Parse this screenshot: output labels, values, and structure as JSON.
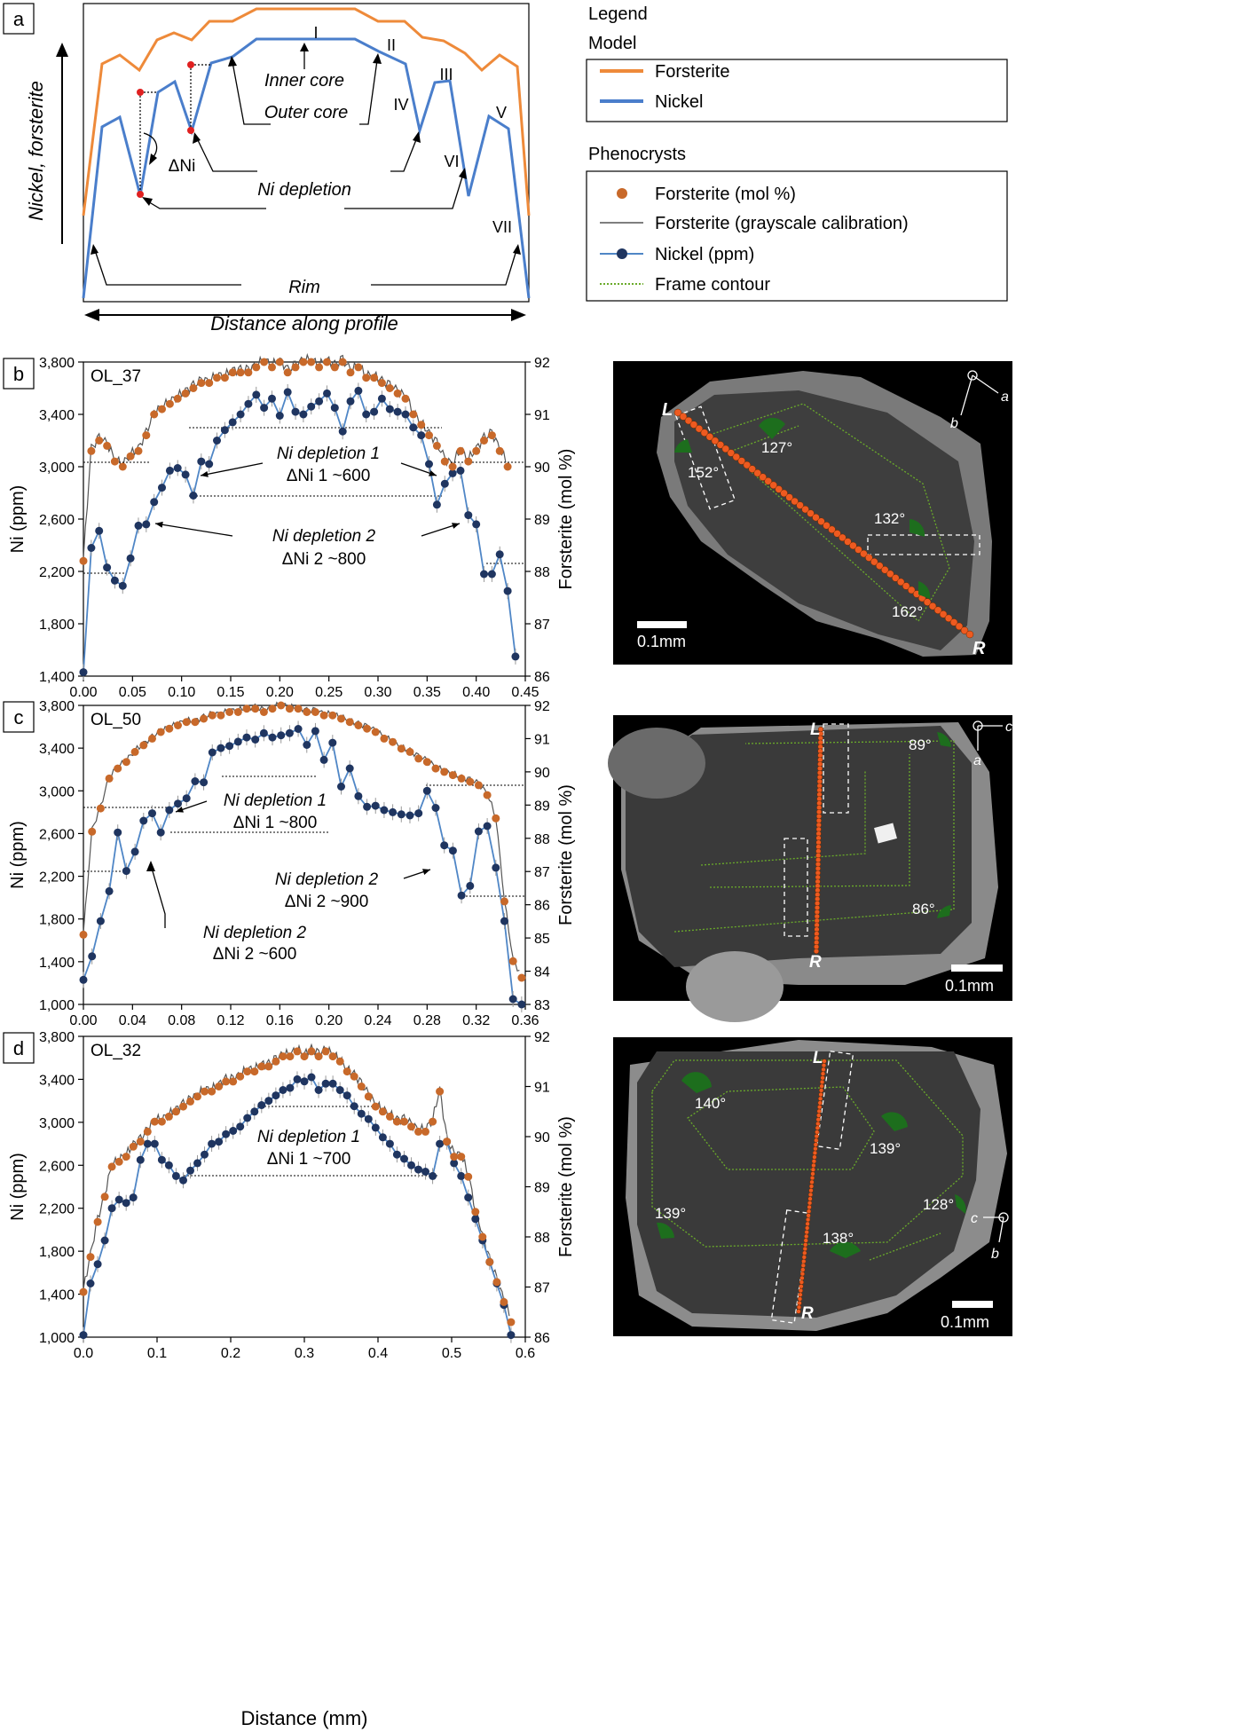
{
  "panel_letters": [
    "a",
    "b",
    "c",
    "d"
  ],
  "panel_a": {
    "y_axis_label": "Nickel, forsterite",
    "x_axis_label": "Distance along profile",
    "labels": {
      "inner_core": "Inner core",
      "outer_core": "Outer core",
      "ni_depletion": "Ni depletion",
      "delta_ni": "ΔNi",
      "rim": "Rim"
    },
    "roman": [
      "I",
      "II",
      "III",
      "IV",
      "V",
      "VI",
      "VII"
    ]
  },
  "legend": {
    "heading": "Legend",
    "model_heading": "Model",
    "model": [
      {
        "label": "Forsterite",
        "color": "#ee8a3a",
        "style": "line"
      },
      {
        "label": "Nickel",
        "color": "#4a7ecb",
        "style": "line"
      }
    ],
    "phenocrysts_heading": "Phenocrysts",
    "phenocrysts": [
      {
        "label": "Forsterite (mol %)",
        "color": "#c8692a",
        "style": "dot"
      },
      {
        "label": "Forsterite (grayscale calibration)",
        "color": "#555555",
        "style": "thin"
      },
      {
        "label": "Nickel (ppm)",
        "color": "#1f3b63",
        "style": "dotline"
      },
      {
        "label": "Frame contour",
        "color": "#6aab2a",
        "style": "dotted"
      }
    ]
  },
  "colors": {
    "forsterite_dot": "#c8692a",
    "nickel_line": "#4f86c6",
    "nickel_dot": "#1f3560",
    "gray_line": "#555555",
    "model_fo": "#ee8a3a",
    "model_ni": "#4a7ecb",
    "frame_contour": "#6aab2a",
    "profile_dots": "#ee5a20"
  },
  "common": {
    "y_left_label": "Ni (ppm)",
    "y_right_label": "Forsterite (mol %)",
    "x_label": "Distance (mm)",
    "scale_bar": "0.1mm",
    "L": "L",
    "R": "R"
  },
  "chart_data": [
    {
      "panel": "b",
      "type": "line",
      "title": "OL_37",
      "xlabel": "Distance (mm)",
      "ylabel": "Ni (ppm)",
      "y2label": "Forsterite (mol %)",
      "xlim": [
        0,
        0.45
      ],
      "ylim": [
        1400,
        3800
      ],
      "y2lim": [
        86,
        92
      ],
      "xticks": [
        "0.00",
        "0.05",
        "0.10",
        "0.15",
        "0.20",
        "0.25",
        "0.30",
        "0.35",
        "0.40",
        "0.45"
      ],
      "yticks": [
        "1,400",
        "1,800",
        "2,200",
        "2,600",
        "3,000",
        "3,400",
        "3,800"
      ],
      "y2ticks": [
        "86",
        "87",
        "88",
        "89",
        "90",
        "91",
        "92"
      ],
      "series": [
        {
          "name": "Nickel (ppm)",
          "x": [
            0.0,
            0.008,
            0.016,
            0.024,
            0.032,
            0.04,
            0.048,
            0.056,
            0.064,
            0.072,
            0.08,
            0.088,
            0.096,
            0.104,
            0.112,
            0.12,
            0.128,
            0.136,
            0.144,
            0.152,
            0.16,
            0.168,
            0.176,
            0.184,
            0.192,
            0.2,
            0.208,
            0.216,
            0.224,
            0.232,
            0.24,
            0.248,
            0.256,
            0.264,
            0.272,
            0.28,
            0.288,
            0.296,
            0.304,
            0.312,
            0.32,
            0.328,
            0.336,
            0.344,
            0.352,
            0.36,
            0.368,
            0.376,
            0.384,
            0.392,
            0.4,
            0.408,
            0.416,
            0.424,
            0.432,
            0.44
          ],
          "y": [
            1430,
            2380,
            2510,
            2230,
            2130,
            2090,
            2300,
            2550,
            2560,
            2730,
            2840,
            2970,
            2990,
            2940,
            2780,
            3040,
            3020,
            3200,
            3280,
            3340,
            3400,
            3480,
            3550,
            3450,
            3520,
            3390,
            3570,
            3420,
            3400,
            3460,
            3500,
            3560,
            3450,
            3270,
            3500,
            3580,
            3400,
            3420,
            3520,
            3440,
            3420,
            3400,
            3300,
            3240,
            3020,
            2710,
            2870,
            2950,
            2970,
            2630,
            2560,
            2180,
            2180,
            2330,
            2050,
            1550
          ]
        },
        {
          "name": "Forsterite (mol %)",
          "x": [
            0.0,
            0.008,
            0.016,
            0.024,
            0.032,
            0.04,
            0.048,
            0.056,
            0.064,
            0.072,
            0.08,
            0.088,
            0.096,
            0.104,
            0.112,
            0.12,
            0.128,
            0.136,
            0.144,
            0.152,
            0.16,
            0.168,
            0.176,
            0.184,
            0.192,
            0.2,
            0.208,
            0.216,
            0.224,
            0.232,
            0.24,
            0.248,
            0.256,
            0.264,
            0.272,
            0.28,
            0.288,
            0.296,
            0.304,
            0.312,
            0.32,
            0.328,
            0.336,
            0.344,
            0.352,
            0.36,
            0.368,
            0.376,
            0.384,
            0.392,
            0.4,
            0.408,
            0.416,
            0.424,
            0.432
          ],
          "y": [
            88.2,
            90.3,
            90.5,
            90.4,
            90.1,
            90.0,
            90.2,
            90.3,
            90.6,
            91.0,
            91.1,
            91.2,
            91.3,
            91.4,
            91.5,
            91.6,
            91.6,
            91.7,
            91.7,
            91.8,
            91.8,
            91.8,
            91.9,
            92.0,
            91.9,
            92.0,
            91.8,
            91.9,
            92.0,
            92.0,
            91.9,
            92.0,
            91.9,
            92.0,
            91.8,
            91.9,
            91.7,
            91.7,
            91.6,
            91.5,
            91.4,
            91.3,
            91.0,
            90.8,
            90.6,
            90.4,
            90.1,
            90.0,
            90.3,
            90.1,
            90.3,
            90.5,
            90.6,
            90.3,
            90.0
          ]
        }
      ],
      "annotations": [
        {
          "text": "Ni depletion 1",
          "value": "ΔNi 1 ~600"
        },
        {
          "text": "Ni depletion 2",
          "value": "ΔNi 2 ~800"
        }
      ],
      "grain_angles": [
        "127°",
        "152°",
        "132°",
        "162°"
      ],
      "axis_labels": [
        "a",
        "b"
      ]
    },
    {
      "panel": "c",
      "type": "line",
      "title": "OL_50",
      "xlabel": "Distance (mm)",
      "ylabel": "Ni (ppm)",
      "y2label": "Forsterite (mol %)",
      "xlim": [
        0,
        0.36
      ],
      "ylim": [
        1000,
        3800
      ],
      "y2lim": [
        83,
        92
      ],
      "xticks": [
        "0.00",
        "0.04",
        "0.08",
        "0.12",
        "0.16",
        "0.20",
        "0.24",
        "0.28",
        "0.32",
        "0.36"
      ],
      "yticks": [
        "1,000",
        "1,400",
        "1,800",
        "2,200",
        "2,600",
        "3,000",
        "3,400",
        "3,800"
      ],
      "y2ticks": [
        "83",
        "84",
        "85",
        "86",
        "87",
        "88",
        "89",
        "90",
        "91",
        "92"
      ],
      "series": [
        {
          "name": "Nickel (ppm)",
          "x": [
            0.0,
            0.007,
            0.014,
            0.021,
            0.028,
            0.035,
            0.042,
            0.049,
            0.056,
            0.063,
            0.07,
            0.077,
            0.084,
            0.091,
            0.098,
            0.105,
            0.112,
            0.119,
            0.126,
            0.133,
            0.14,
            0.147,
            0.154,
            0.161,
            0.168,
            0.175,
            0.182,
            0.189,
            0.196,
            0.203,
            0.21,
            0.217,
            0.224,
            0.231,
            0.238,
            0.245,
            0.252,
            0.259,
            0.266,
            0.273,
            0.28,
            0.287,
            0.294,
            0.301,
            0.308,
            0.315,
            0.322,
            0.329,
            0.336,
            0.343,
            0.35,
            0.357
          ],
          "y": [
            1230,
            1450,
            1780,
            2060,
            2610,
            2250,
            2430,
            2720,
            2790,
            2610,
            2820,
            2880,
            2930,
            3090,
            3080,
            3360,
            3400,
            3420,
            3460,
            3500,
            3480,
            3540,
            3500,
            3520,
            3540,
            3580,
            3430,
            3560,
            3290,
            3450,
            3040,
            3210,
            2950,
            2850,
            2860,
            2820,
            2800,
            2780,
            2770,
            2790,
            3000,
            2840,
            2490,
            2440,
            2020,
            2110,
            2620,
            2670,
            2280,
            1780,
            1050,
            1000
          ]
        },
        {
          "name": "Forsterite (mol %)",
          "x": [
            0.0,
            0.007,
            0.014,
            0.021,
            0.028,
            0.035,
            0.042,
            0.049,
            0.056,
            0.063,
            0.07,
            0.077,
            0.084,
            0.091,
            0.098,
            0.105,
            0.112,
            0.119,
            0.126,
            0.133,
            0.14,
            0.147,
            0.154,
            0.161,
            0.168,
            0.175,
            0.182,
            0.189,
            0.196,
            0.203,
            0.21,
            0.217,
            0.224,
            0.231,
            0.238,
            0.245,
            0.252,
            0.259,
            0.266,
            0.273,
            0.28,
            0.287,
            0.294,
            0.301,
            0.308,
            0.315,
            0.322,
            0.329,
            0.336,
            0.343,
            0.35,
            0.357
          ],
          "y": [
            85.1,
            88.2,
            88.9,
            89.8,
            90.1,
            90.3,
            90.6,
            90.8,
            91.0,
            91.2,
            91.3,
            91.4,
            91.5,
            91.5,
            91.6,
            91.7,
            91.7,
            91.8,
            91.8,
            91.9,
            91.9,
            91.8,
            91.9,
            92.0,
            91.9,
            91.9,
            91.8,
            91.8,
            91.7,
            91.7,
            91.6,
            91.5,
            91.4,
            91.3,
            91.2,
            91.0,
            90.9,
            90.7,
            90.6,
            90.4,
            90.3,
            90.1,
            90.0,
            89.9,
            89.8,
            89.7,
            89.6,
            89.3,
            88.6,
            86.1,
            84.3,
            83.8
          ]
        }
      ],
      "annotations": [
        {
          "text": "Ni depletion 1",
          "value": "ΔNi 1 ~800"
        },
        {
          "text": "Ni depletion 2",
          "value": "ΔNi 2 ~900"
        },
        {
          "text": "Ni depletion 2",
          "value": "ΔNi 2 ~600"
        }
      ],
      "grain_angles": [
        "89°",
        "86°"
      ],
      "axis_labels": [
        "c",
        "a"
      ]
    },
    {
      "panel": "d",
      "type": "line",
      "title": "OL_32",
      "xlabel": "Distance (mm)",
      "ylabel": "Ni (ppm)",
      "y2label": "Forsterite (mol %)",
      "xlim": [
        0,
        0.62
      ],
      "ylim": [
        1000,
        3800
      ],
      "y2lim": [
        86,
        92
      ],
      "xticks": [
        "0.0",
        "0.1",
        "0.2",
        "0.3",
        "0.4",
        "0.5",
        "0.6"
      ],
      "yticks": [
        "1,000",
        "1,400",
        "1,800",
        "2,200",
        "2,600",
        "3,000",
        "3,400",
        "3,800"
      ],
      "y2ticks": [
        "86",
        "87",
        "88",
        "89",
        "90",
        "91",
        "92"
      ],
      "series": [
        {
          "name": "Nickel (ppm)",
          "x": [
            0.0,
            0.01,
            0.02,
            0.03,
            0.04,
            0.05,
            0.06,
            0.07,
            0.08,
            0.09,
            0.1,
            0.11,
            0.12,
            0.13,
            0.14,
            0.15,
            0.16,
            0.17,
            0.18,
            0.19,
            0.2,
            0.21,
            0.22,
            0.23,
            0.24,
            0.25,
            0.26,
            0.27,
            0.28,
            0.29,
            0.3,
            0.31,
            0.32,
            0.33,
            0.34,
            0.35,
            0.36,
            0.37,
            0.38,
            0.39,
            0.4,
            0.41,
            0.42,
            0.43,
            0.44,
            0.45,
            0.46,
            0.47,
            0.48,
            0.49,
            0.5,
            0.51,
            0.52,
            0.53,
            0.54,
            0.55,
            0.56,
            0.57,
            0.58,
            0.59,
            0.6
          ],
          "y": [
            1020,
            1500,
            1680,
            1900,
            2200,
            2280,
            2250,
            2300,
            2650,
            2800,
            2800,
            2650,
            2600,
            2500,
            2460,
            2550,
            2620,
            2700,
            2800,
            2820,
            2890,
            2920,
            2960,
            3040,
            3100,
            3160,
            3200,
            3250,
            3300,
            3320,
            3400,
            3380,
            3420,
            3300,
            3360,
            3360,
            3300,
            3250,
            3150,
            3080,
            3030,
            2950,
            2860,
            2800,
            2700,
            2660,
            2600,
            2560,
            2540,
            2500,
            2800,
            2820,
            2620,
            2500,
            2300,
            2100,
            1900,
            1700,
            1500,
            1300,
            1020
          ]
        },
        {
          "name": "Forsterite (mol %)",
          "x": [
            0.0,
            0.01,
            0.02,
            0.03,
            0.04,
            0.05,
            0.06,
            0.07,
            0.08,
            0.09,
            0.1,
            0.11,
            0.12,
            0.13,
            0.14,
            0.15,
            0.16,
            0.17,
            0.18,
            0.19,
            0.2,
            0.21,
            0.22,
            0.23,
            0.24,
            0.25,
            0.26,
            0.27,
            0.28,
            0.29,
            0.3,
            0.31,
            0.32,
            0.33,
            0.34,
            0.35,
            0.36,
            0.37,
            0.38,
            0.39,
            0.4,
            0.41,
            0.42,
            0.43,
            0.44,
            0.45,
            0.46,
            0.47,
            0.48,
            0.49,
            0.5,
            0.51,
            0.52,
            0.53,
            0.54,
            0.55,
            0.56,
            0.57,
            0.58,
            0.59,
            0.6
          ],
          "y": [
            86.9,
            87.6,
            88.3,
            88.8,
            89.4,
            89.5,
            89.6,
            89.8,
            89.9,
            90.1,
            90.3,
            90.3,
            90.4,
            90.5,
            90.6,
            90.7,
            90.8,
            90.9,
            90.9,
            91.0,
            91.1,
            91.1,
            91.2,
            91.3,
            91.3,
            91.4,
            91.4,
            91.5,
            91.6,
            91.6,
            91.7,
            91.6,
            91.7,
            91.6,
            91.7,
            91.6,
            91.5,
            91.3,
            91.2,
            91.0,
            90.8,
            90.6,
            90.5,
            90.4,
            90.3,
            90.3,
            90.2,
            90.1,
            90.1,
            90.3,
            90.9,
            89.9,
            89.6,
            89.6,
            89.2,
            88.5,
            88.0,
            87.5,
            87.1,
            86.7,
            86.3
          ]
        }
      ],
      "annotations": [
        {
          "text": "Ni depletion 1",
          "value": "ΔNi 1 ~700"
        }
      ],
      "grain_angles": [
        "140°",
        "139°",
        "128°",
        "139°",
        "138°"
      ],
      "axis_labels": [
        "c",
        "b"
      ]
    }
  ]
}
